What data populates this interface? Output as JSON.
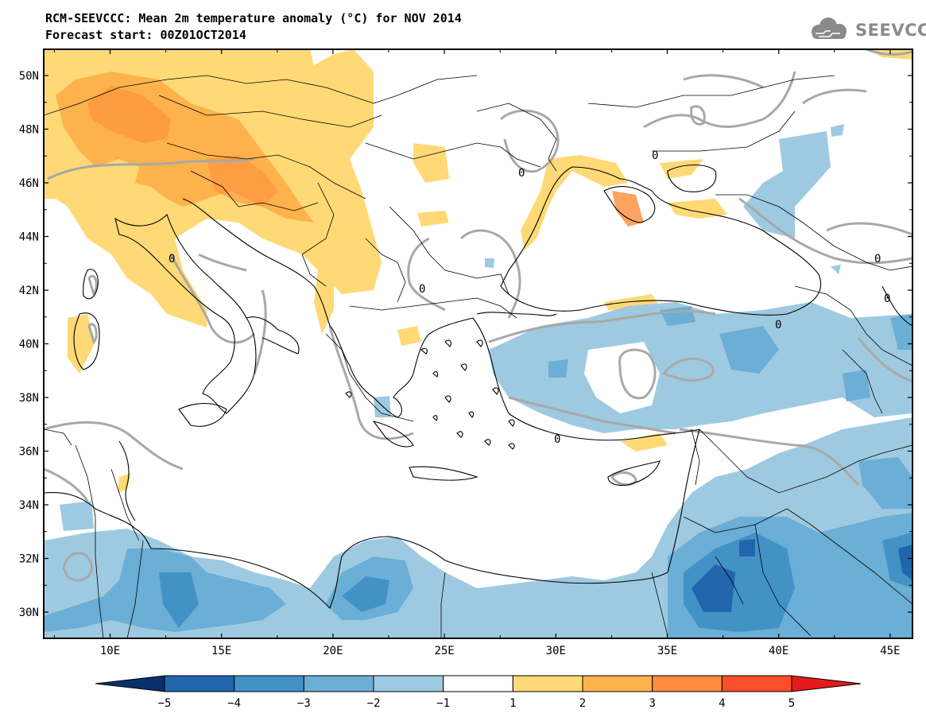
{
  "title_line1": "RCM-SEEVCCC: Mean 2m temperature anomaly (°C) for NOV 2014",
  "title_line2": "Forecast start: 00Z01OCT2014",
  "logo_text": "SEEVCCC",
  "lat_labels": [
    "50N",
    "48N",
    "46N",
    "44N",
    "42N",
    "40N",
    "38N",
    "36N",
    "34N",
    "32N",
    "30N"
  ],
  "lon_labels": [
    "10E",
    "15E",
    "20E",
    "25E",
    "30E",
    "35E",
    "40E",
    "45E"
  ],
  "contour_label": "0",
  "colorbar": {
    "ticks": [
      "−5",
      "−4",
      "−3",
      "−2",
      "−1",
      "1",
      "2",
      "3",
      "4",
      "5"
    ],
    "colors": [
      "#08306b",
      "#2166ac",
      "#4292c6",
      "#6baed6",
      "#9ecae1",
      "#ffffff",
      "#fed976",
      "#feb24c",
      "#fd8d3c",
      "#fc4e2a",
      "#e31a1c"
    ]
  }
}
